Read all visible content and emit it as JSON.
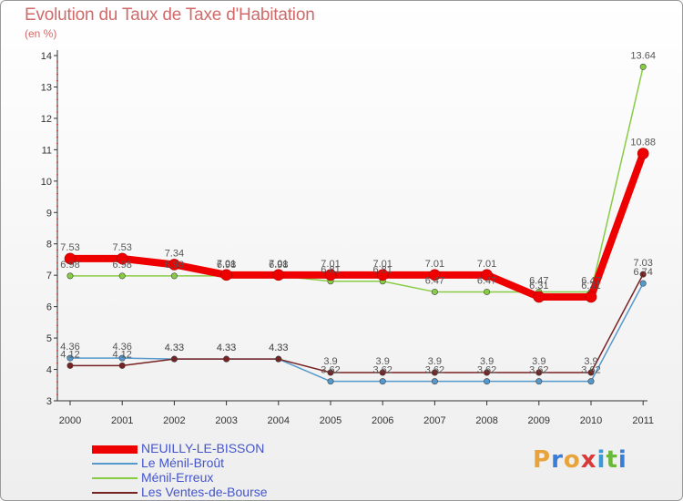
{
  "chart": {
    "title": "Evolution du Taux de Taxe d'Habitation",
    "subtitle": "(en %)"
  },
  "brand": {
    "text": "Proxiti",
    "letters": [
      "P",
      "r",
      "o",
      "x",
      "i",
      "t",
      "i"
    ],
    "colors": [
      "#e8a33a",
      "#3a7dd8",
      "#e8a33a",
      "#d83a3a",
      "#3a9ad8",
      "#6ab83a",
      "#3a7dd8"
    ]
  },
  "chart_data": {
    "type": "line",
    "categories": [
      "2000",
      "2001",
      "2002",
      "2003",
      "2004",
      "2005",
      "2006",
      "2007",
      "2008",
      "2009",
      "2010",
      "2011"
    ],
    "ylim": [
      3,
      14
    ],
    "yticks": [
      3,
      4,
      5,
      6,
      7,
      8,
      9,
      10,
      11,
      12,
      13,
      14
    ],
    "grid": false,
    "legend_position": "bottom-left",
    "series": [
      {
        "name": "NEUILLY-LE-BISSON",
        "color": "#ee0000",
        "values": [
          7.53,
          7.53,
          7.34,
          7.01,
          7.01,
          7.01,
          7.01,
          7.01,
          7.01,
          6.31,
          6.31,
          10.88
        ],
        "labels": [
          "7.53",
          "7.53",
          "7.34",
          "7.01",
          "7.01",
          "7.01",
          "7.01",
          "7.01",
          "7.01",
          "6.31",
          "6.31",
          "10.88"
        ]
      },
      {
        "name": "Le Ménil-Broût",
        "color": "#5599cc",
        "values": [
          4.36,
          4.36,
          4.33,
          4.33,
          4.33,
          3.62,
          3.62,
          3.62,
          3.62,
          3.62,
          3.62,
          6.74
        ],
        "labels": [
          "4.36",
          "4.36",
          "4.33",
          "4.33",
          "4.33",
          "3.62",
          "3.62",
          "3.62",
          "3.62",
          "3.62",
          "3.62",
          "6.74"
        ]
      },
      {
        "name": "Ménil-Erreux",
        "color": "#88cc44",
        "values": [
          6.98,
          6.98,
          6.98,
          6.98,
          6.98,
          6.81,
          6.81,
          6.47,
          6.47,
          6.47,
          6.47,
          13.64
        ],
        "labels": [
          "6.98",
          "6.98",
          "6.98",
          "6.98",
          "6.98",
          "6.81",
          "6.81",
          "6.47",
          "6.47",
          "6.47",
          "6.47",
          "13.64"
        ]
      },
      {
        "name": "Les Ventes-de-Bourse",
        "color": "#772222",
        "values": [
          4.12,
          4.12,
          4.33,
          4.33,
          4.33,
          3.9,
          3.9,
          3.9,
          3.9,
          3.9,
          3.9,
          7.03
        ],
        "labels": [
          "4.12",
          "4.12",
          "4.33",
          "4.33",
          "4.33",
          "3.9",
          "3.9",
          "3.9",
          "3.9",
          "3.9",
          "3.9",
          "7.03"
        ]
      }
    ]
  }
}
